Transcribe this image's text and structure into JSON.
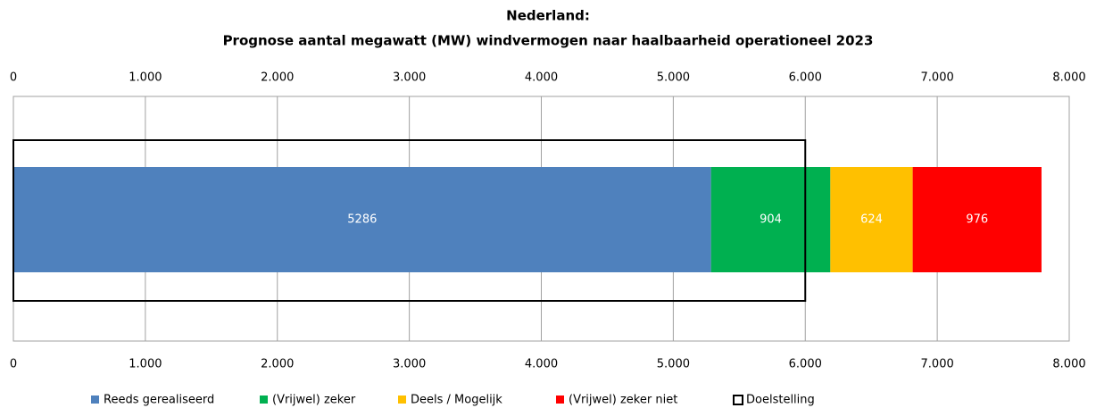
{
  "chart_data": {
    "type": "bar",
    "orientation": "horizontal",
    "stacked": true,
    "title": "Nederland:",
    "subtitle": "Prognose aantal megawatt (MW) windvermogen naar haalbaarheid operationeel 2023",
    "categories": [
      null
    ],
    "series": [
      {
        "name": "Reeds gerealiseerd",
        "color": "#4f81bd",
        "values": [
          5286
        ]
      },
      {
        "name": "(Vrijwel) zeker",
        "color": "#00b050",
        "values": [
          904
        ]
      },
      {
        "name": "Deels / Mogelijk",
        "color": "#ffc000",
        "values": [
          624
        ]
      },
      {
        "name": "(Vrijwel) zeker niet",
        "color": "#ff0000",
        "values": [
          976
        ]
      }
    ],
    "target": {
      "name": "Doelstelling",
      "value": 6000,
      "color": "#000000"
    },
    "xlim": [
      0,
      8000
    ],
    "xticks": [
      0,
      {
        "value": 1000,
        "label": "1.000"
      },
      {
        "value": 2000,
        "label": "2.000"
      },
      {
        "value": 3000,
        "label": "3.000"
      },
      {
        "value": 4000,
        "label": "4.000"
      },
      {
        "value": 5000,
        "label": "5.000"
      },
      {
        "value": 6000,
        "label": "6.000"
      },
      {
        "value": 7000,
        "label": "7.000"
      },
      {
        "value": 8000,
        "label": "8.000"
      }
    ],
    "grid": true,
    "legend": "bottom"
  }
}
